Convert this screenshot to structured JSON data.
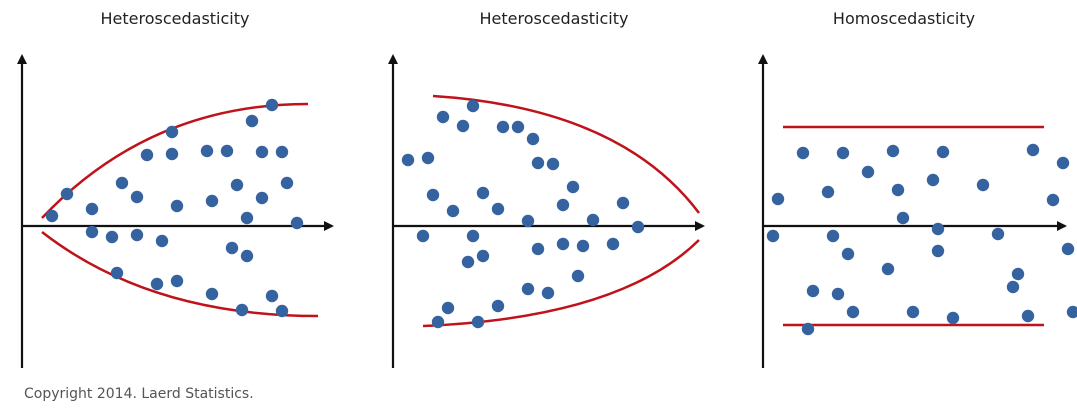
{
  "colors": {
    "axis": "#111111",
    "envelope": "#c0121a",
    "point": "#3563a0"
  },
  "copyright": "Copyright 2014. Laerd Statistics.",
  "panels": [
    {
      "title": "Heteroscedasticity",
      "shape": "fan-out",
      "points": [
        [
          0.12,
          0.2
        ],
        [
          0.18,
          0.64
        ],
        [
          0.28,
          -0.12
        ],
        [
          0.28,
          0.34
        ],
        [
          0.36,
          -0.22
        ],
        [
          0.38,
          -0.94
        ],
        [
          0.4,
          0.86
        ],
        [
          0.46,
          0.58
        ],
        [
          0.46,
          -0.18
        ],
        [
          0.5,
          1.42
        ],
        [
          0.54,
          -1.16
        ],
        [
          0.56,
          -0.3
        ],
        [
          0.6,
          1.44
        ],
        [
          0.6,
          1.88
        ],
        [
          0.62,
          -1.1
        ],
        [
          0.62,
          0.4
        ],
        [
          0.74,
          1.5
        ],
        [
          0.76,
          0.5
        ],
        [
          0.76,
          -1.36
        ],
        [
          0.82,
          1.5
        ],
        [
          0.84,
          -0.44
        ],
        [
          0.86,
          0.82
        ],
        [
          0.88,
          -1.68
        ],
        [
          0.9,
          -0.6
        ],
        [
          0.9,
          0.16
        ],
        [
          0.92,
          2.1
        ],
        [
          0.96,
          0.56
        ],
        [
          0.96,
          1.48
        ],
        [
          1.0,
          -1.4
        ],
        [
          1.0,
          2.42
        ],
        [
          1.04,
          1.48
        ],
        [
          1.04,
          -1.7
        ],
        [
          1.06,
          0.86
        ],
        [
          1.1,
          0.06
        ]
      ]
    },
    {
      "title": "Heteroscedasticity",
      "shape": "fan-in",
      "points": [
        [
          0.06,
          1.32
        ],
        [
          0.12,
          -0.2
        ],
        [
          0.14,
          1.36
        ],
        [
          0.16,
          0.62
        ],
        [
          0.18,
          -1.92
        ],
        [
          0.2,
          2.18
        ],
        [
          0.22,
          -1.64
        ],
        [
          0.24,
          0.3
        ],
        [
          0.28,
          2.0
        ],
        [
          0.3,
          -0.72
        ],
        [
          0.32,
          -0.2
        ],
        [
          0.32,
          2.4
        ],
        [
          0.34,
          -1.92
        ],
        [
          0.36,
          0.66
        ],
        [
          0.36,
          -0.6
        ],
        [
          0.42,
          0.34
        ],
        [
          0.42,
          -1.6
        ],
        [
          0.44,
          1.98
        ],
        [
          0.5,
          1.98
        ],
        [
          0.54,
          0.1
        ],
        [
          0.54,
          -1.26
        ],
        [
          0.56,
          1.74
        ],
        [
          0.58,
          -0.46
        ],
        [
          0.58,
          1.26
        ],
        [
          0.62,
          -1.34
        ],
        [
          0.64,
          1.24
        ],
        [
          0.68,
          -0.36
        ],
        [
          0.68,
          0.42
        ],
        [
          0.72,
          0.78
        ],
        [
          0.74,
          -1.0
        ],
        [
          0.76,
          -0.4
        ],
        [
          0.8,
          0.12
        ],
        [
          0.88,
          -0.36
        ],
        [
          0.92,
          0.46
        ],
        [
          0.98,
          -0.02
        ]
      ]
    },
    {
      "title": "Homoscedasticity",
      "shape": "band",
      "points": [
        [
          0.04,
          -0.2
        ],
        [
          0.06,
          0.54
        ],
        [
          0.16,
          1.46
        ],
        [
          0.18,
          -2.06
        ],
        [
          0.2,
          -1.3
        ],
        [
          0.26,
          0.68
        ],
        [
          0.28,
          -0.2
        ],
        [
          0.3,
          -1.36
        ],
        [
          0.32,
          1.46
        ],
        [
          0.34,
          -0.56
        ],
        [
          0.36,
          -1.72
        ],
        [
          0.42,
          1.08
        ],
        [
          0.5,
          -0.86
        ],
        [
          0.52,
          1.5
        ],
        [
          0.54,
          0.72
        ],
        [
          0.56,
          0.16
        ],
        [
          0.6,
          -1.72
        ],
        [
          0.68,
          0.92
        ],
        [
          0.7,
          -0.5
        ],
        [
          0.7,
          -0.06
        ],
        [
          0.72,
          1.48
        ],
        [
          0.76,
          -1.84
        ],
        [
          0.88,
          0.82
        ],
        [
          0.94,
          -0.16
        ],
        [
          1.0,
          -1.22
        ],
        [
          1.02,
          -0.96
        ],
        [
          1.06,
          -1.8
        ],
        [
          1.08,
          1.52
        ],
        [
          1.16,
          0.52
        ],
        [
          1.2,
          1.26
        ],
        [
          1.22,
          -0.46
        ],
        [
          1.24,
          -1.72
        ]
      ]
    }
  ]
}
